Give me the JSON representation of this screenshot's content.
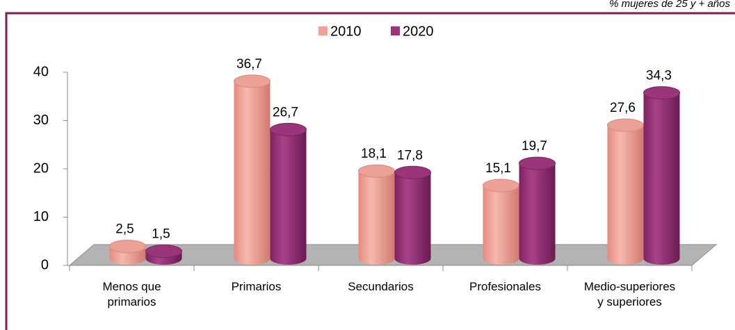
{
  "chart_data": {
    "type": "bar3d",
    "subtitle": "% mujeres de 25 y + años",
    "categories": [
      "Menos que primarios",
      "Primarios",
      "Secundarios",
      "Profesionales",
      "Medio-superiores y superiores"
    ],
    "series": [
      {
        "name": "2010",
        "color": "#eda096",
        "values": [
          2.5,
          36.7,
          18.1,
          15.1,
          27.6
        ],
        "value_labels": [
          "2,5",
          "36,7",
          "18,1",
          "15,1",
          "27,6"
        ]
      },
      {
        "name": "2020",
        "color": "#9a3579",
        "values": [
          1.5,
          26.7,
          17.8,
          19.7,
          34.3
        ],
        "value_labels": [
          "1,5",
          "26,7",
          "17,8",
          "19,7",
          "34,3"
        ]
      }
    ],
    "ylim": [
      0,
      40
    ],
    "yticks": [
      0,
      10,
      20,
      30,
      40
    ]
  }
}
